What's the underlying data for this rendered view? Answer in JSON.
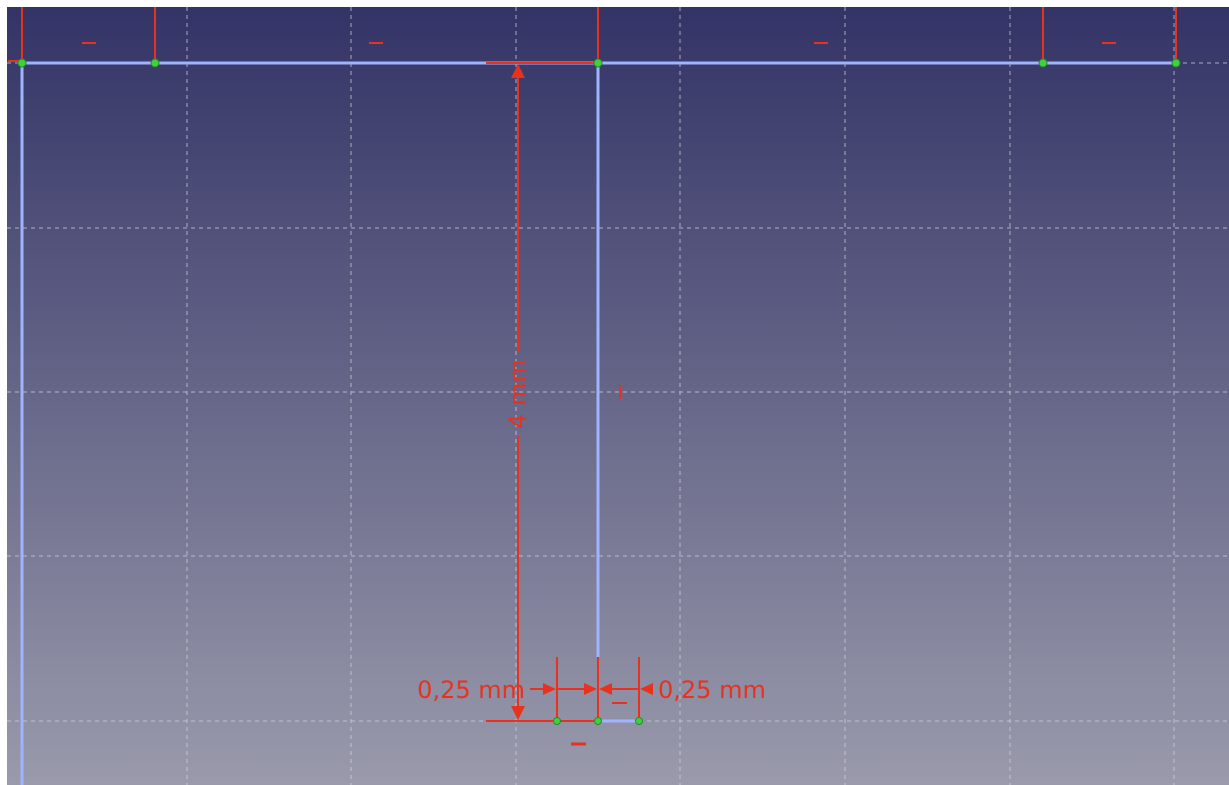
{
  "viewport": {
    "background_top": "#333366",
    "background_bottom": "#9a9aac",
    "grid_color": "#d0d0d8",
    "geometry_color": "#9fb4ff",
    "constraint_color": "#e8321e",
    "vertex_color": "#3bd23b"
  },
  "constraints": {
    "height_label": "4 mm",
    "left_width_label": "0,25 mm",
    "right_width_label": "0,25 mm",
    "horizontal_symbol": "—",
    "vertical_symbol": "I"
  }
}
